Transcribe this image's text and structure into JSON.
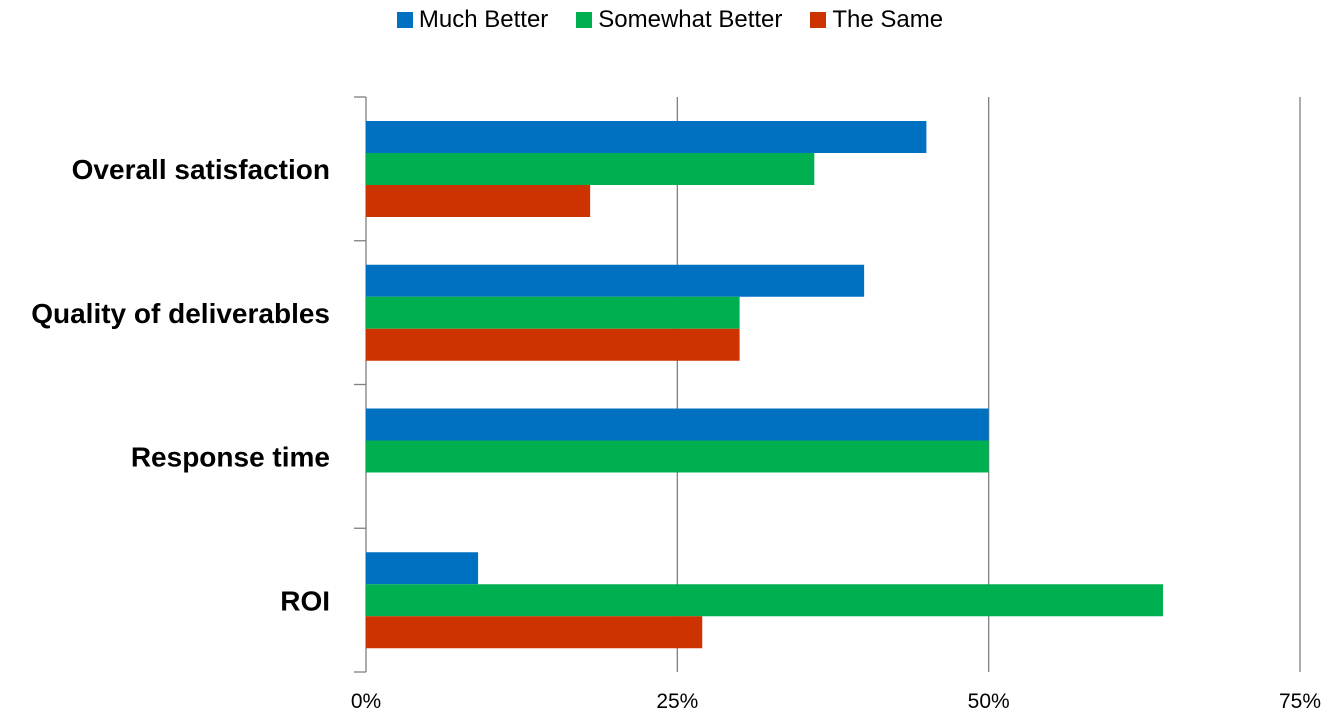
{
  "chart_data": {
    "type": "bar",
    "orientation": "horizontal",
    "categories": [
      "Overall satisfaction",
      "Quality of deliverables",
      "Response time",
      "ROI"
    ],
    "series": [
      {
        "name": "Much Better",
        "color": "#0070C0",
        "values": [
          45,
          40,
          50,
          9
        ]
      },
      {
        "name": "Somewhat Better",
        "color": "#00B050",
        "values": [
          36,
          30,
          50,
          64
        ]
      },
      {
        "name": "The Same",
        "color": "#CC3300",
        "values": [
          18,
          30,
          0,
          27
        ]
      }
    ],
    "xlim": [
      0,
      75
    ],
    "xticks": [
      0,
      25,
      50,
      75
    ],
    "xtick_labels": [
      "0%",
      "25%",
      "50%",
      "75%"
    ],
    "grid": "vertical",
    "legend_position": "top"
  }
}
